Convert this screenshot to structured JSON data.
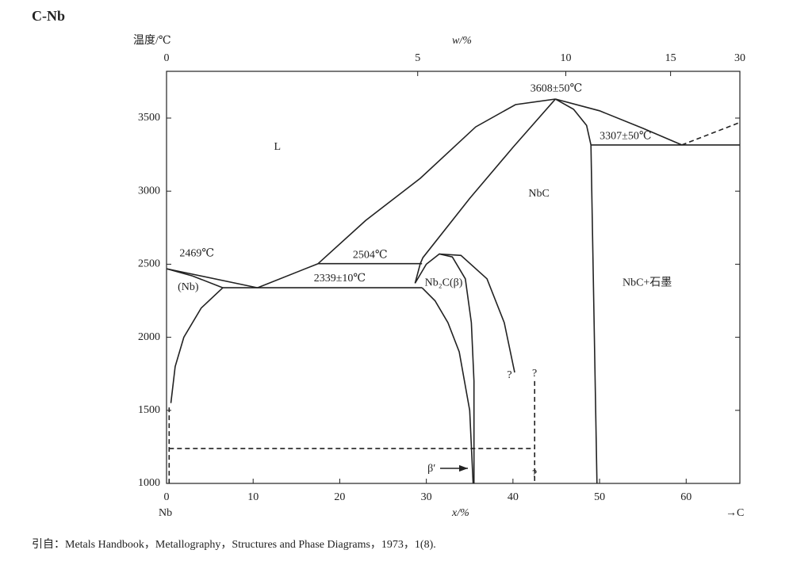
{
  "chart_data": {
    "type": "line",
    "title": "C-Nb",
    "ylabel": "温度/℃",
    "x2label": "w/%",
    "xlabel": "x/%",
    "x_start_label": "Nb",
    "x_end_label": "→C",
    "xlim": [
      0,
      66.2
    ],
    "ylim": [
      1000,
      3820
    ],
    "xticks": [
      0,
      10,
      20,
      30,
      40,
      50,
      60
    ],
    "yticks": [
      1000,
      1500,
      2000,
      2500,
      3000,
      3500
    ],
    "x2ticks": [
      {
        "value": 0,
        "label": "0"
      },
      {
        "value": 29,
        "label": "5"
      },
      {
        "value": 46.1,
        "label": "10"
      },
      {
        "value": 58.2,
        "label": "15"
      },
      {
        "value": 66.2,
        "label": "30"
      }
    ],
    "series": [
      {
        "color": "#222",
        "x": [
          0,
          10.5
        ],
        "values": [
          2469,
          2339
        ]
      },
      {
        "color": "#222",
        "x": [
          0,
          3,
          6.5
        ],
        "values": [
          2469,
          2420,
          2339
        ]
      },
      {
        "color": "#222",
        "x": [
          6.5,
          4,
          2,
          1,
          0.5
        ],
        "values": [
          2339,
          2200,
          2000,
          1800,
          1550
        ]
      },
      {
        "color": "#222",
        "x": [
          6.5,
          29.5
        ],
        "values": [
          2339,
          2339
        ]
      },
      {
        "color": "#222",
        "x": [
          10.5,
          17.5
        ],
        "values": [
          2339,
          2504
        ]
      },
      {
        "color": "#222",
        "x": [
          17.5,
          29.5
        ],
        "values": [
          2504,
          2504
        ]
      },
      {
        "color": "#222",
        "x": [
          17.5,
          23,
          29.3,
          35.7,
          40.3,
          44.9
        ],
        "values": [
          2504,
          2800,
          3088,
          3440,
          3592,
          3630
        ]
      },
      {
        "color": "#222",
        "x": [
          44.9,
          50,
          55,
          59.5
        ],
        "values": [
          3630,
          3550,
          3430,
          3316
        ]
      },
      {
        "color": "#222",
        "x": [
          44.9,
          40,
          35,
          29.6,
          29.3,
          28.7
        ],
        "values": [
          3630,
          3300,
          2950,
          2545,
          2504,
          2370
        ]
      },
      {
        "color": "#222",
        "x": [
          44.9,
          47,
          48.5,
          49,
          49.7
        ],
        "values": [
          3630,
          3560,
          3450,
          3316,
          1000
        ]
      },
      {
        "color": "#222",
        "x": [
          49,
          66.2
        ],
        "values": [
          3316,
          3316
        ]
      },
      {
        "color": "#222",
        "dash": true,
        "x": [
          59.5,
          66.2
        ],
        "values": [
          3316,
          3470
        ]
      },
      {
        "color": "#222",
        "x": [
          28.7,
          30,
          31.5,
          33,
          34.5,
          35.2,
          35.5,
          35.5
        ],
        "values": [
          2370,
          2500,
          2570,
          2550,
          2400,
          2100,
          1700,
          1000
        ]
      },
      {
        "color": "#222",
        "x": [
          29.5,
          31,
          32.5,
          33.8,
          35,
          35.4
        ],
        "values": [
          2339,
          2250,
          2100,
          1900,
          1500,
          1000
        ]
      },
      {
        "color": "#222",
        "x": [
          31.5,
          34,
          37,
          39,
          40.2
        ],
        "values": [
          2570,
          2560,
          2400,
          2100,
          1760
        ]
      },
      {
        "color": "#222",
        "dash": true,
        "x": [
          0.3,
          0.3
        ],
        "values": [
          1520,
          1000
        ]
      },
      {
        "color": "#222",
        "dash": true,
        "x": [
          0.3,
          42.5
        ],
        "values": [
          1239,
          1239
        ]
      },
      {
        "color": "#222",
        "dash": true,
        "x": [
          42.5,
          42.5
        ],
        "values": [
          1700,
          1000
        ]
      }
    ],
    "annotations": [
      {
        "text": "L",
        "x": 12.8,
        "y": 3300
      },
      {
        "text": "NbC",
        "x": 43,
        "y": 2980
      },
      {
        "text": "NbC+石墨",
        "x": 55.5,
        "y": 2370
      },
      {
        "text": "(Nb)",
        "x": 2.5,
        "y": 2340
      },
      {
        "text": "2469℃",
        "x": 3.5,
        "y": 2570
      },
      {
        "text": "2504℃",
        "x": 23.5,
        "y": 2560
      },
      {
        "text": "2339±10℃",
        "x": 20,
        "y": 2400
      },
      {
        "text": "3608±50℃",
        "x": 45,
        "y": 3700
      },
      {
        "text": "3307±50℃",
        "x": 53,
        "y": 3375
      },
      {
        "text": "Nb₂C(β)",
        "x": 32,
        "y": 2370
      },
      {
        "text": "?",
        "x": 39.6,
        "y": 1740
      },
      {
        "text": "?",
        "x": 42.5,
        "y": 1750
      },
      {
        "text": "?",
        "x": 42.5,
        "y": 1060
      },
      {
        "text": "β′",
        "x": 30.6,
        "y": 1100
      }
    ],
    "source": "引自：Metals Handbook，Metallography，Structures and Phase Diagrams，1973，1(8)."
  }
}
